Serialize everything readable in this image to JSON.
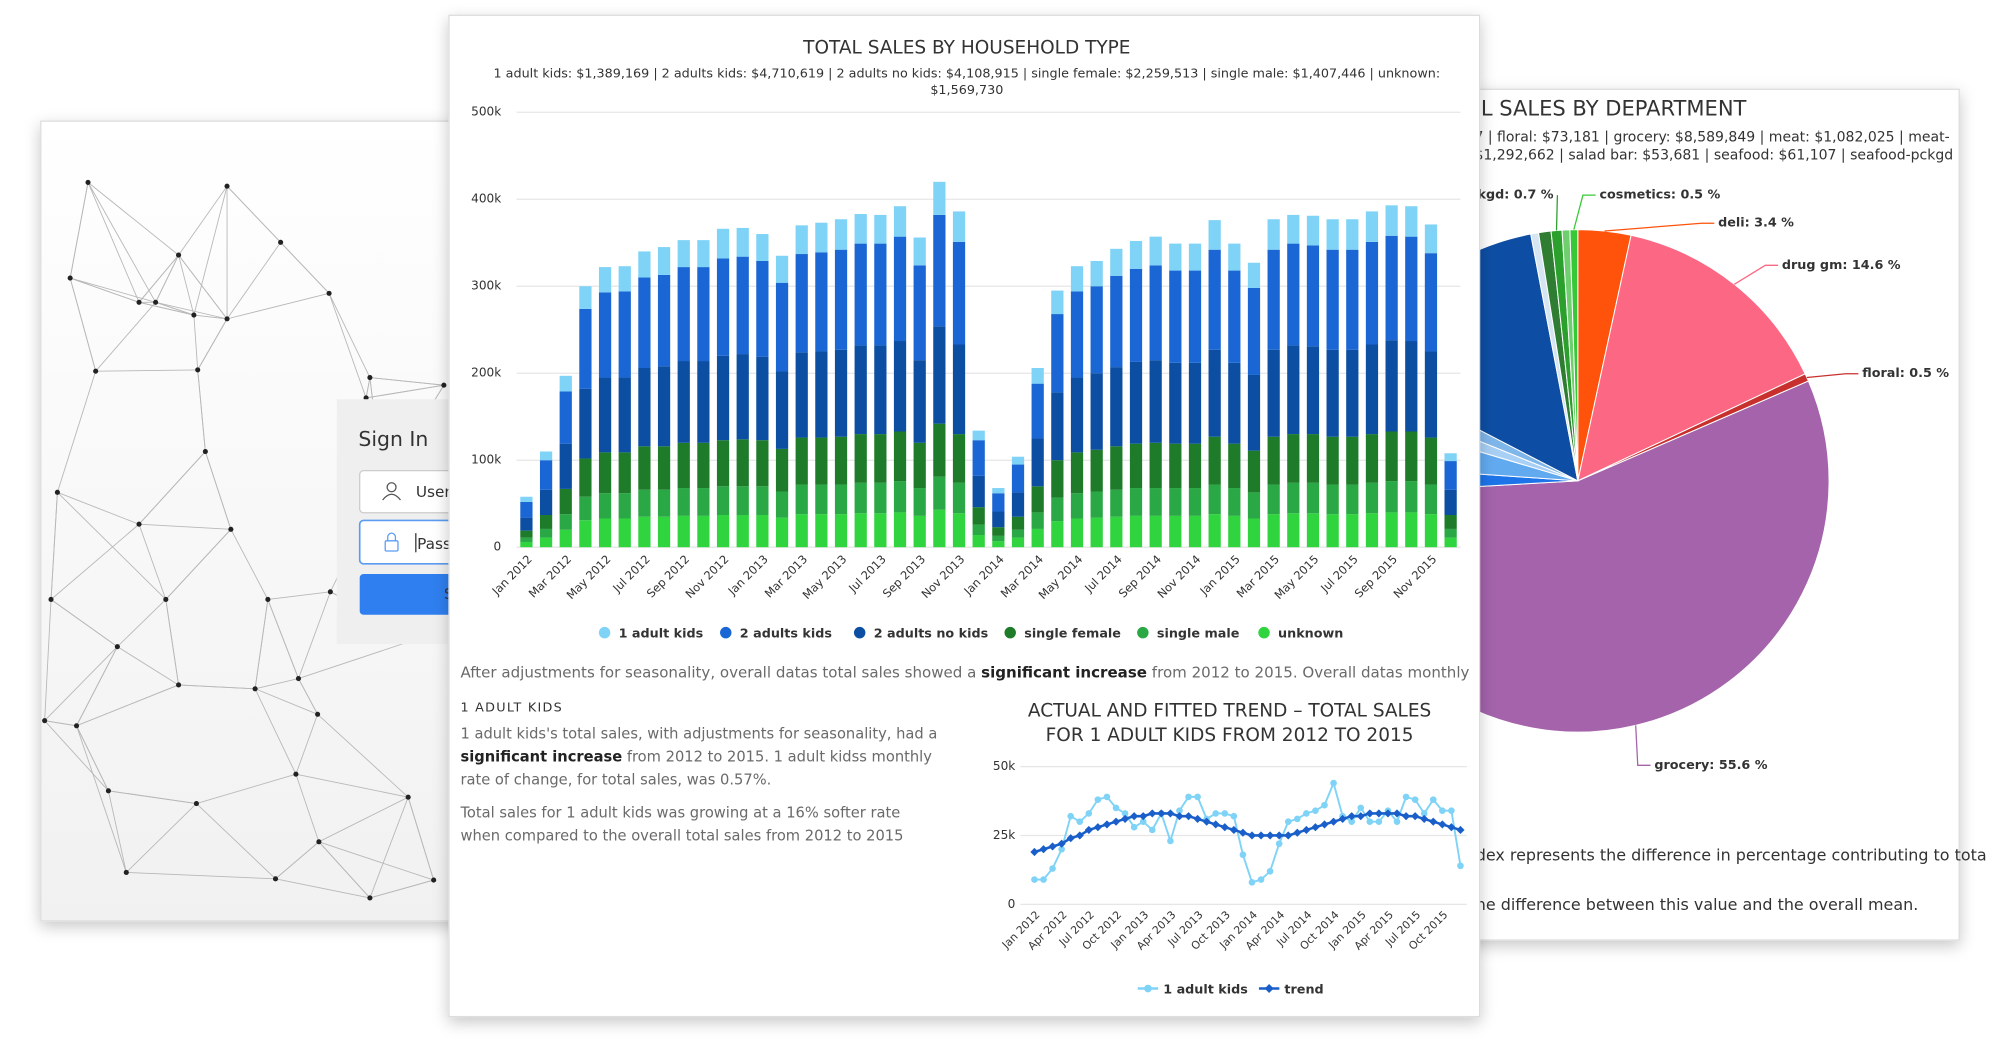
{
  "signin": {
    "title": "Sign In",
    "username_placeholder": "User",
    "password_placeholder": "Pass",
    "button": "S"
  },
  "chart_data": [
    {
      "type": "bar",
      "stacked": true,
      "title": "TOTAL SALES BY HOUSEHOLD TYPE",
      "subtitle": [
        "1 adult kids: $1,389,169 | 2 adults kids: $4,710,619 | 2 adults no kids: $4,108,915 | single female: $2,259,513 | single male: $1,407,446 | unknown:",
        "$1,569,730"
      ],
      "categories": [
        "Jan 2012",
        null,
        "Mar 2012",
        null,
        "May 2012",
        null,
        "Jul 2012",
        null,
        "Sep 2012",
        null,
        "Nov 2012",
        null,
        "Jan 2013",
        null,
        "Mar 2013",
        null,
        "May 2013",
        null,
        "Jul 2013",
        null,
        "Sep 2013",
        null,
        "Nov 2013",
        null,
        "Jan 2014",
        null,
        "Mar 2014",
        null,
        "May 2014",
        null,
        "Jul 2014",
        null,
        "Sep 2014",
        null,
        "Nov 2014",
        null,
        "Jan 2015",
        null,
        "Mar 2015",
        null,
        "May 2015",
        null,
        "Jul 2015",
        null,
        "Sep 2015",
        null,
        "Nov 2015",
        null
      ],
      "series": [
        {
          "name": "1 adult kids",
          "color": "#7fd3f7",
          "values": [
            6000,
            10000,
            18000,
            26000,
            29000,
            29000,
            30000,
            32000,
            31000,
            31000,
            34000,
            33000,
            31000,
            31000,
            33000,
            34000,
            35000,
            34000,
            33000,
            35000,
            32000,
            38000,
            35000,
            11000,
            6000,
            9000,
            18000,
            27000,
            29000,
            29000,
            31000,
            32000,
            33000,
            31000,
            31000,
            34000,
            31000,
            29000,
            35000,
            33000,
            34000,
            35000,
            35000,
            35000,
            35000,
            35000,
            33000,
            9000
          ]
        },
        {
          "name": "2 adults kids",
          "color": "#1a66d4",
          "values": [
            18000,
            34000,
            60000,
            92000,
            98000,
            99000,
            104000,
            105000,
            108000,
            108000,
            112000,
            112000,
            110000,
            102000,
            113000,
            114000,
            115000,
            117000,
            117000,
            120000,
            109000,
            128000,
            118000,
            41000,
            21000,
            32000,
            63000,
            90000,
            99000,
            100000,
            105000,
            107000,
            109000,
            106000,
            106000,
            115000,
            106000,
            100000,
            115000,
            117000,
            116000,
            115000,
            115000,
            118000,
            120000,
            120000,
            113000,
            33000
          ]
        },
        {
          "name": "2 adults no kids",
          "color": "#0c4ea2",
          "values": [
            15000,
            29000,
            52000,
            80000,
            86000,
            86000,
            90000,
            92000,
            94000,
            94000,
            97000,
            98000,
            96000,
            89000,
            98000,
            99000,
            100000,
            102000,
            102000,
            104000,
            95000,
            112000,
            103000,
            36000,
            18000,
            28000,
            55000,
            78000,
            86000,
            88000,
            91000,
            94000,
            95000,
            93000,
            93000,
            100000,
            93000,
            87000,
            100000,
            102000,
            101000,
            100000,
            100000,
            103000,
            105000,
            104000,
            99000,
            29000
          ]
        },
        {
          "name": "single female",
          "color": "#1e7b2a",
          "values": [
            8000,
            16000,
            29000,
            44000,
            47000,
            47000,
            50000,
            50000,
            52000,
            52000,
            53000,
            54000,
            53000,
            49000,
            54000,
            54000,
            55000,
            56000,
            56000,
            57000,
            52000,
            61000,
            56000,
            20000,
            10000,
            15000,
            30000,
            43000,
            47000,
            48000,
            50000,
            51000,
            52000,
            51000,
            51000,
            55000,
            51000,
            48000,
            55000,
            56000,
            56000,
            55000,
            55000,
            56000,
            57000,
            57000,
            54000,
            16000
          ]
        },
        {
          "name": "single male",
          "color": "#2aa845",
          "values": [
            5000,
            10000,
            18000,
            27000,
            29000,
            29000,
            31000,
            31000,
            32000,
            32000,
            33000,
            33000,
            33000,
            30000,
            34000,
            34000,
            34000,
            35000,
            35000,
            36000,
            32000,
            38000,
            35000,
            12000,
            6000,
            9000,
            19000,
            27000,
            29000,
            30000,
            31000,
            32000,
            32000,
            32000,
            32000,
            34000,
            32000,
            30000,
            34000,
            35000,
            35000,
            34000,
            34000,
            35000,
            36000,
            36000,
            34000,
            10000
          ]
        },
        {
          "name": "unknown",
          "color": "#30d43f",
          "values": [
            6000,
            11000,
            20000,
            31000,
            33000,
            33000,
            35000,
            35000,
            36000,
            36000,
            37000,
            37000,
            37000,
            34000,
            38000,
            38000,
            38000,
            39000,
            39000,
            40000,
            36000,
            43000,
            39000,
            14000,
            7000,
            11000,
            21000,
            30000,
            33000,
            34000,
            35000,
            36000,
            36000,
            36000,
            36000,
            38000,
            36000,
            33000,
            38000,
            39000,
            39000,
            38000,
            38000,
            39000,
            40000,
            40000,
            38000,
            11000
          ]
        }
      ],
      "ylim": [
        0,
        500000
      ],
      "yticks": [
        0,
        {
          "value": 100000,
          "label": "100k"
        },
        {
          "value": 200000,
          "label": "200k"
        },
        {
          "value": 300000,
          "label": "300k"
        },
        {
          "value": 400000,
          "label": "400k"
        },
        {
          "value": 500000,
          "label": "500k"
        }
      ],
      "grid": true,
      "legend": "bottom"
    },
    {
      "type": "line",
      "title": [
        "ACTUAL AND FITTED TREND – TOTAL SALES",
        "FOR 1 ADULT KIDS FROM 2012 TO 2015"
      ],
      "categories": [
        "Jan 2012",
        null,
        null,
        "Apr 2012",
        null,
        null,
        "Jul 2012",
        null,
        null,
        "Oct 2012",
        null,
        null,
        "Jan 2013",
        null,
        null,
        "Apr 2013",
        null,
        null,
        "Jul 2013",
        null,
        null,
        "Oct 2013",
        null,
        null,
        "Jan 2014",
        null,
        null,
        "Apr 2014",
        null,
        null,
        "Jul 2014",
        null,
        null,
        "Oct 2014",
        null,
        null,
        "Jan 2015",
        null,
        null,
        "Apr 2015",
        null,
        null,
        "Jul 2015",
        null,
        null,
        "Oct 2015",
        null,
        null
      ],
      "series": [
        {
          "name": "1 adult kids",
          "color": "#7fd3f7",
          "values": [
            9000,
            9000,
            13000,
            20000,
            32000,
            30000,
            33000,
            38000,
            39000,
            35000,
            33000,
            28000,
            30000,
            27000,
            33000,
            23000,
            34000,
            39000,
            39000,
            31000,
            33000,
            33000,
            32000,
            18000,
            8000,
            9000,
            12000,
            22000,
            30000,
            31000,
            33000,
            34000,
            36000,
            44000,
            32000,
            30000,
            35000,
            30000,
            30000,
            34000,
            30000,
            39000,
            38000,
            33000,
            38000,
            34000,
            34000,
            14000
          ]
        },
        {
          "name": "trend",
          "color": "#1a5fc9",
          "values": [
            19000,
            20000,
            21000,
            22000,
            24000,
            25000,
            27000,
            28000,
            29000,
            30000,
            31000,
            32000,
            32000,
            33000,
            33000,
            33000,
            32000,
            32000,
            31000,
            30000,
            29000,
            28000,
            27000,
            26000,
            25000,
            25000,
            25000,
            25000,
            25000,
            26000,
            27000,
            28000,
            29000,
            30000,
            31000,
            32000,
            32000,
            33000,
            33000,
            33000,
            33000,
            32000,
            32000,
            31000,
            30000,
            29000,
            28000,
            27000
          ]
        }
      ],
      "ylim": [
        0,
        50000
      ],
      "yticks": [
        0,
        {
          "value": 25000,
          "label": "25k"
        },
        {
          "value": 50000,
          "label": "50k"
        }
      ],
      "grid": true,
      "legend": "bottom"
    },
    {
      "type": "pie",
      "title": "L SALES BY DEPARTMENT",
      "subtitle": [
        "7 | floral: $73,181 | grocery: $8,589,849 | meat: $1,082,025 | meat-",
        "$1,292,662 | salad bar: $53,681 | seafood: $61,107 | seafood-pckgd"
      ],
      "values": [
        3.4,
        14.6,
        0.5,
        55.6,
        2,
        3.5,
        1.5,
        1.5,
        14.4,
        0.5,
        0.8,
        0.7,
        0.5,
        0.5
      ],
      "value_labels": [
        "deli: 3.4 %",
        "drug gm: 14.6 %",
        "floral: 0.5 %",
        "grocery: 55.6 %",
        null,
        null,
        null,
        null,
        null,
        null,
        null,
        "ckgd: 0.7 %",
        null,
        "cosmetics: 0.5 %"
      ],
      "colors": [
        "#ff520a",
        "#fc6883",
        "#c8302e",
        "#a463aa",
        "#1d74e8",
        "#62aaf0",
        "#a8cff5",
        "#7fb6ea",
        "#0d4ea4",
        "#d5e5f2",
        "#2e7d32",
        "#2ca02c",
        "#6fcf6f",
        "#37c837"
      ]
    }
  ],
  "analysis": {
    "intro": [
      "After adjustments for seasonality, overall datas total sales showed a ",
      "significant increase",
      " from 2012 to 2015. Overall datas monthly rate of change, for"
    ],
    "section_title": "1 ADULT KIDS",
    "paragraph": [
      "1 adult kids's total sales, with adjustments for seasonality, had a ",
      "significant increase",
      " from 2012 to 2015. 1 adult kidss monthly rate of change, for total sales, was 0.57%."
    ],
    "comparison": "Total sales for 1 adult kids was growing at a 16% softer rate when compared to the overall total sales from 2012 to 2015"
  },
  "pie_notes": [
    "dex represents the difference in percentage contributing to tota",
    "he difference between this value and the overall mean."
  ]
}
